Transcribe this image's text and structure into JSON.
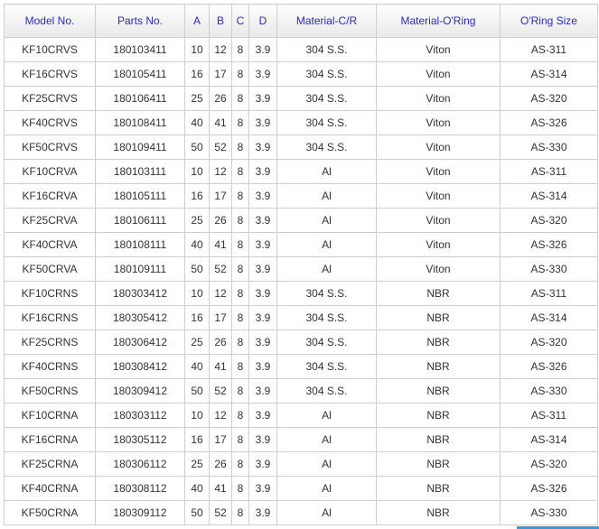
{
  "headers": [
    "Model No.",
    "Parts No.",
    "A",
    "B",
    "C",
    "D",
    "Material-C/R",
    "Material-O'Ring",
    "O'Ring Size"
  ],
  "rows": [
    [
      "KF10CRVS",
      "180103411",
      "10",
      "12",
      "8",
      "3.9",
      "304 S.S.",
      "Viton",
      "AS-311"
    ],
    [
      "KF16CRVS",
      "180105411",
      "16",
      "17",
      "8",
      "3.9",
      "304 S.S.",
      "Viton",
      "AS-314"
    ],
    [
      "KF25CRVS",
      "180106411",
      "25",
      "26",
      "8",
      "3.9",
      "304 S.S.",
      "Viton",
      "AS-320"
    ],
    [
      "KF40CRVS",
      "180108411",
      "40",
      "41",
      "8",
      "3.9",
      "304 S.S.",
      "Viton",
      "AS-326"
    ],
    [
      "KF50CRVS",
      "180109411",
      "50",
      "52",
      "8",
      "3.9",
      "304 S.S.",
      "Viton",
      "AS-330"
    ],
    [
      "KF10CRVA",
      "180103111",
      "10",
      "12",
      "8",
      "3.9",
      "Al",
      "Viton",
      "AS-311"
    ],
    [
      "KF16CRVA",
      "180105111",
      "16",
      "17",
      "8",
      "3.9",
      "Al",
      "Viton",
      "AS-314"
    ],
    [
      "KF25CRVA",
      "180106111",
      "25",
      "26",
      "8",
      "3.9",
      "Al",
      "Viton",
      "AS-320"
    ],
    [
      "KF40CRVA",
      "180108111",
      "40",
      "41",
      "8",
      "3.9",
      "Al",
      "Viton",
      "AS-326"
    ],
    [
      "KF50CRVA",
      "180109111",
      "50",
      "52",
      "8",
      "3.9",
      "Al",
      "Viton",
      "AS-330"
    ],
    [
      "KF10CRNS",
      "180303412",
      "10",
      "12",
      "8",
      "3.9",
      "304 S.S.",
      "NBR",
      "AS-311"
    ],
    [
      "KF16CRNS",
      "180305412",
      "16",
      "17",
      "8",
      "3.9",
      "304 S.S.",
      "NBR",
      "AS-314"
    ],
    [
      "KF25CRNS",
      "180306412",
      "25",
      "26",
      "8",
      "3.9",
      "304 S.S.",
      "NBR",
      "AS-320"
    ],
    [
      "KF40CRNS",
      "180308412",
      "40",
      "41",
      "8",
      "3.9",
      "304 S.S.",
      "NBR",
      "AS-326"
    ],
    [
      "KF50CRNS",
      "180309412",
      "50",
      "52",
      "8",
      "3.9",
      "304 S.S.",
      "NBR",
      "AS-330"
    ],
    [
      "KF10CRNA",
      "180303112",
      "10",
      "12",
      "8",
      "3.9",
      "Al",
      "NBR",
      "AS-311"
    ],
    [
      "KF16CRNA",
      "180305112",
      "16",
      "17",
      "8",
      "3.9",
      "Al",
      "NBR",
      "AS-314"
    ],
    [
      "KF25CRNA",
      "180306112",
      "25",
      "26",
      "8",
      "3.9",
      "Al",
      "NBR",
      "AS-320"
    ],
    [
      "KF40CRNA",
      "180308112",
      "40",
      "41",
      "8",
      "3.9",
      "Al",
      "NBR",
      "AS-326"
    ],
    [
      "KF50CRNA",
      "180309112",
      "50",
      "52",
      "8",
      "3.9",
      "Al",
      "NBR",
      "AS-330"
    ]
  ]
}
